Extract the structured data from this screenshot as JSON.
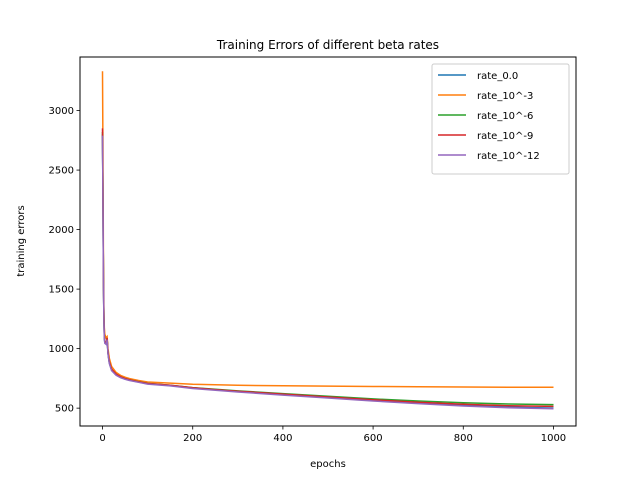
{
  "chart_data": {
    "type": "line",
    "title": "Training Errors of different beta rates",
    "xlabel": "epochs",
    "ylabel": "training errors",
    "xlim": [
      -50,
      1050
    ],
    "ylim": [
      350,
      3450
    ],
    "xticks": [
      0,
      200,
      400,
      600,
      800,
      1000
    ],
    "yticks": [
      500,
      1000,
      1500,
      2000,
      2500,
      3000
    ],
    "grid": false,
    "legend_position": "top-right",
    "series": [
      {
        "name": "rate_0.0",
        "color": "#1f77b4",
        "x": [
          0,
          1,
          2,
          3,
          4,
          5,
          8,
          10,
          12,
          15,
          20,
          30,
          40,
          50,
          60,
          80,
          100,
          150,
          200,
          250,
          300,
          400,
          500,
          600,
          700,
          800,
          900,
          1000
        ],
        "y": [
          2800,
          2200,
          1600,
          1250,
          1100,
          1050,
          1040,
          1080,
          960,
          880,
          820,
          780,
          760,
          745,
          735,
          720,
          705,
          690,
          670,
          655,
          640,
          615,
          590,
          565,
          545,
          525,
          510,
          500
        ]
      },
      {
        "name": "rate_10^-3",
        "color": "#ff7f0e",
        "x": [
          0,
          1,
          2,
          3,
          4,
          5,
          8,
          10,
          12,
          15,
          20,
          30,
          40,
          50,
          60,
          80,
          100,
          150,
          200,
          250,
          300,
          400,
          500,
          600,
          700,
          800,
          900,
          1000
        ],
        "y": [
          3330,
          2600,
          1800,
          1350,
          1180,
          1120,
          1090,
          1100,
          1000,
          920,
          850,
          800,
          775,
          760,
          748,
          732,
          720,
          710,
          700,
          697,
          692,
          688,
          685,
          682,
          680,
          678,
          676,
          675
        ]
      },
      {
        "name": "rate_10^-6",
        "color": "#2ca02c",
        "x": [
          0,
          1,
          2,
          3,
          4,
          5,
          8,
          10,
          12,
          15,
          20,
          30,
          40,
          50,
          60,
          80,
          100,
          150,
          200,
          250,
          300,
          400,
          500,
          600,
          700,
          800,
          900,
          1000
        ],
        "y": [
          2820,
          2210,
          1610,
          1260,
          1110,
          1055,
          1045,
          1085,
          965,
          885,
          825,
          785,
          762,
          748,
          738,
          722,
          708,
          693,
          673,
          658,
          645,
          622,
          600,
          578,
          560,
          545,
          535,
          530
        ]
      },
      {
        "name": "rate_10^-9",
        "color": "#d62728",
        "x": [
          0,
          1,
          2,
          3,
          4,
          5,
          8,
          10,
          12,
          15,
          20,
          30,
          40,
          50,
          60,
          80,
          100,
          150,
          200,
          250,
          300,
          400,
          500,
          600,
          700,
          800,
          900,
          1000
        ],
        "y": [
          2850,
          2230,
          1620,
          1270,
          1115,
          1060,
          1048,
          1090,
          968,
          888,
          828,
          786,
          763,
          748,
          737,
          721,
          707,
          692,
          671,
          656,
          642,
          618,
          594,
          570,
          550,
          532,
          520,
          515
        ]
      },
      {
        "name": "rate_10^-12",
        "color": "#9467bd",
        "x": [
          0,
          1,
          2,
          3,
          4,
          5,
          8,
          10,
          12,
          15,
          20,
          30,
          40,
          50,
          60,
          80,
          100,
          150,
          200,
          250,
          300,
          400,
          500,
          600,
          700,
          800,
          900,
          1000
        ],
        "y": [
          2790,
          2190,
          1590,
          1240,
          1095,
          1045,
          1035,
          1075,
          955,
          875,
          815,
          776,
          756,
          742,
          732,
          717,
          702,
          687,
          665,
          650,
          636,
          610,
          585,
          560,
          538,
          518,
          503,
          495
        ]
      }
    ]
  }
}
